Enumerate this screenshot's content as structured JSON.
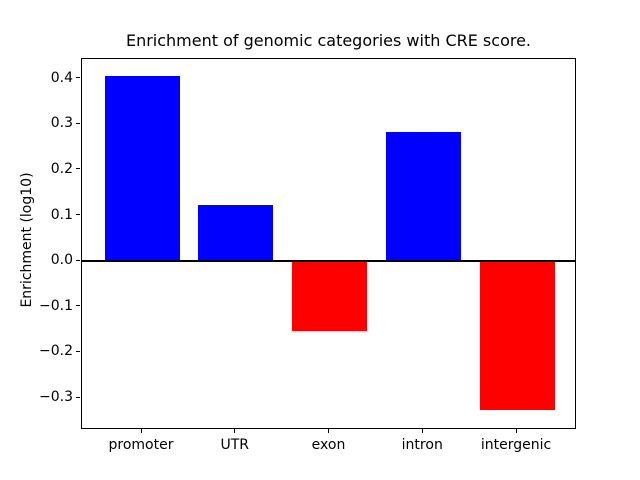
{
  "chart_data": {
    "type": "bar",
    "title": "Enrichment of genomic categories with CRE score.",
    "xlabel": "",
    "ylabel": "Enrichment (log10)",
    "categories": [
      "promoter",
      "UTR",
      "exon",
      "intron",
      "intergenic"
    ],
    "values": [
      0.406,
      0.122,
      -0.154,
      0.283,
      -0.326
    ],
    "positive_color": "#0000ff",
    "negative_color": "#ff0000",
    "bar_colors": [
      "#0000ff",
      "#0000ff",
      "#ff0000",
      "#0000ff",
      "#ff0000"
    ],
    "yticks": [
      0.4,
      0.3,
      0.2,
      0.1,
      0.0,
      -0.1,
      -0.2,
      -0.3
    ],
    "ytick_labels": [
      "0.4",
      "0.3",
      "0.2",
      "0.1",
      "0.0",
      "−0.1",
      "−0.2",
      "−0.3"
    ],
    "ylim": [
      -0.37,
      0.443
    ],
    "xlim": [
      -0.64,
      4.64
    ],
    "bar_width_fraction": 0.8,
    "zero_line": true,
    "grid": false,
    "legend": null,
    "axis_color": "#000000",
    "background_color": "#ffffff"
  }
}
